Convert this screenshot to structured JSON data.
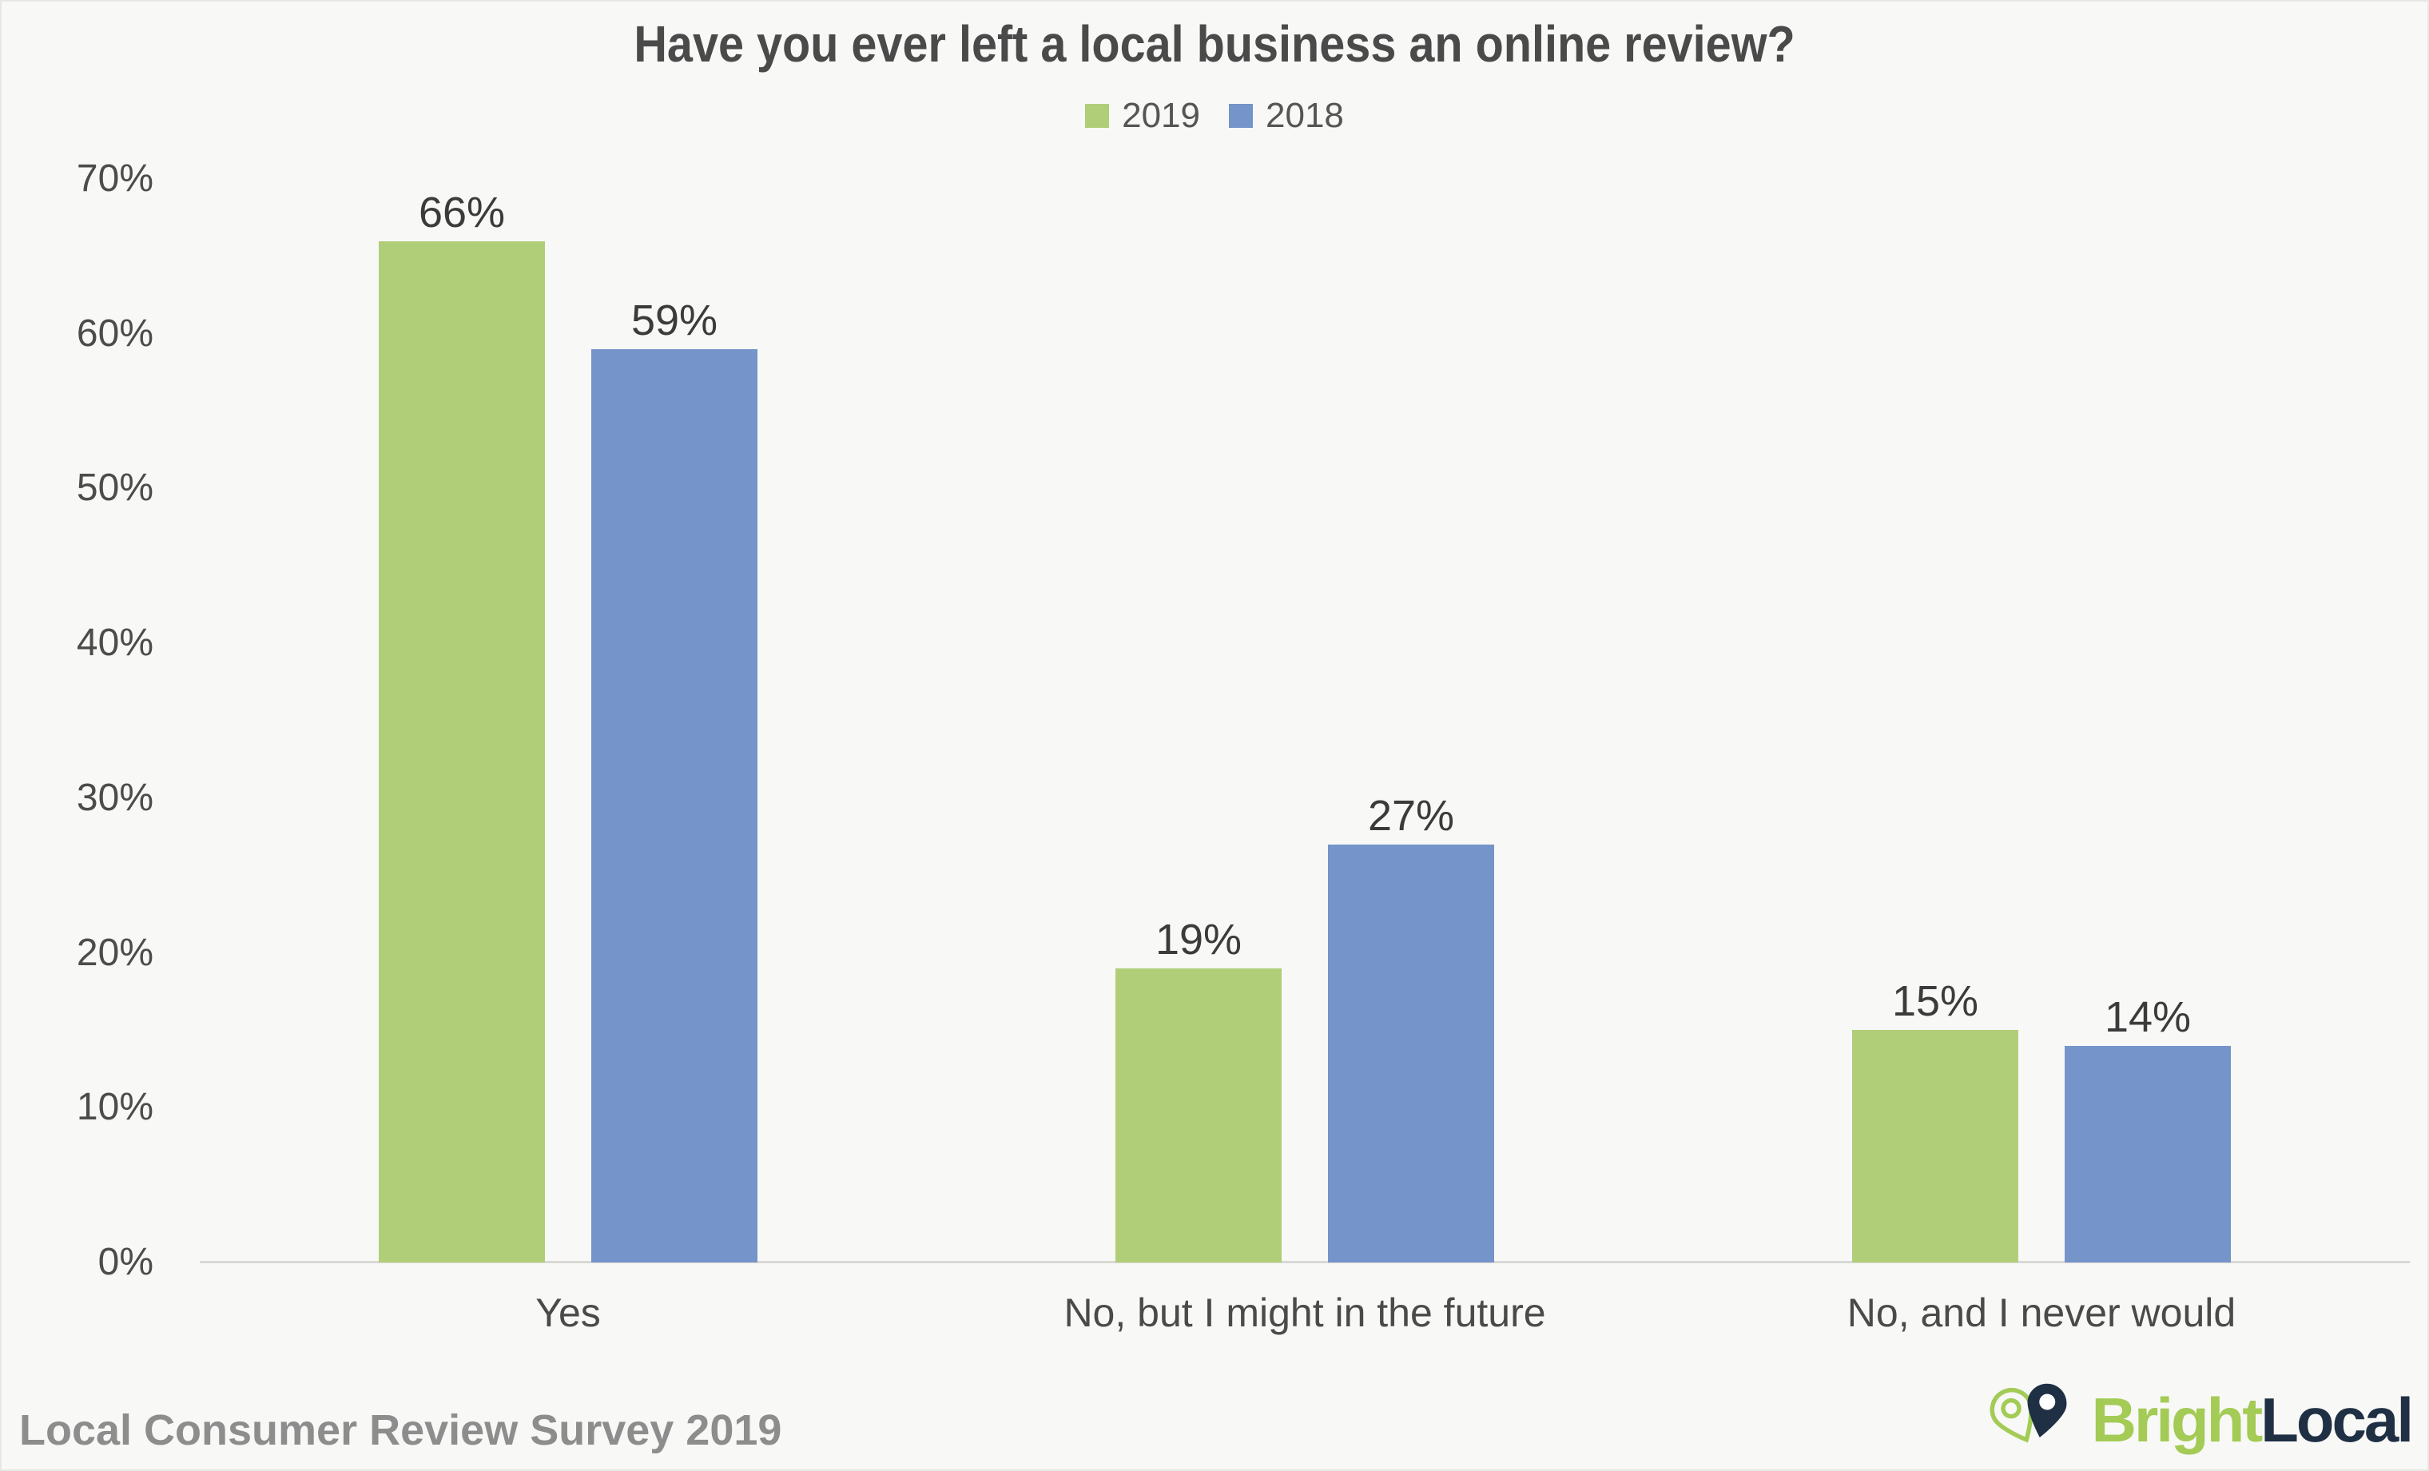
{
  "chart_data": {
    "type": "bar",
    "title": "Have you ever left a local business an online review?",
    "categories": [
      "Yes",
      "No, but I might in the future",
      "No, and I never would"
    ],
    "series": [
      {
        "name": "2019",
        "color": "#b0ce78",
        "values": [
          66,
          19,
          15
        ]
      },
      {
        "name": "2018",
        "color": "#7594c9",
        "values": [
          59,
          27,
          14
        ]
      }
    ],
    "xlabel": "",
    "ylabel": "",
    "ylim": [
      0,
      70
    ],
    "y_ticks": [
      0,
      10,
      20,
      30,
      40,
      50,
      60,
      70
    ],
    "value_suffix": "%",
    "grid": false,
    "legend_position": "top",
    "data_labels": [
      "66%",
      "59%",
      "19%",
      "27%",
      "15%",
      "14%"
    ],
    "y_tick_labels": [
      "0%",
      "10%",
      "20%",
      "30%",
      "40%",
      "50%",
      "60%",
      "70%"
    ]
  },
  "footer": {
    "source": "Local Consumer Review Survey 2019",
    "brand": {
      "bright": "Bright",
      "local": "Local"
    }
  },
  "icons": {
    "logo_pin": "brightlocal-double-map-pin"
  },
  "colors": {
    "background": "#f8f8f6",
    "border": "#e7e7e3",
    "title_text": "#4a4a4a",
    "tick_text": "#4c4c4c",
    "value_text": "#3b3b3b",
    "category_text": "#4a4a4a",
    "legend_text": "#555555",
    "source_text": "#8d8d8d",
    "axis_line": "#d8d8d5",
    "series_2019": "#b0ce78",
    "series_2018": "#7594c9",
    "logo_green": "#a3cb55",
    "logo_navy": "#1f2f44"
  }
}
